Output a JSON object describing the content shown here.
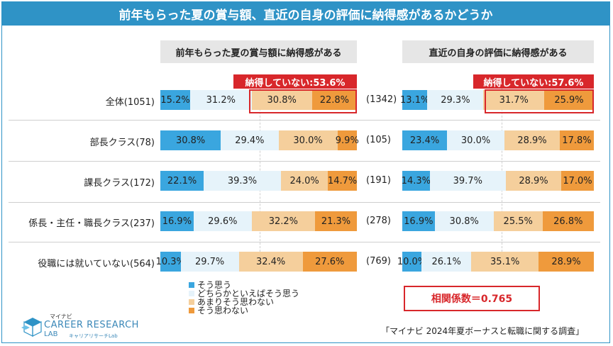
{
  "title": "前年もらった夏の賞与額、直近の自身の評価に納得感があるかどうか",
  "colors": {
    "accent": "#2f93c6",
    "highlight": "#d8272b",
    "c1": "#3aa6df",
    "c2": "#e6f3fa",
    "c3": "#f5cf9c",
    "c4": "#ef9a3c"
  },
  "panels": [
    {
      "header": "前年もらった夏の賞与額に納得感がある",
      "highlight_label": "納得していない:53.6%"
    },
    {
      "header": "直近の自身の評価に納得感がある",
      "highlight_label": "納得していない:57.6%"
    }
  ],
  "legend": [
    "そう思う",
    "どちらかといえばそう思う",
    "あまりそう思わない",
    "そう思わない"
  ],
  "correlation": "相関係数＝0.765",
  "source": "「マイナビ 2024年夏ボーナスと転職に関する調査」",
  "logo": {
    "small": "マイナビ",
    "main": "CAREER RESEARCH",
    "sub": "LAB",
    "sub2": "キャリアリサーチLab"
  },
  "chart_data": [
    {
      "type": "bar",
      "stacked": true,
      "title": "前年もらった夏の賞与額に納得感がある",
      "categories": [
        "全体(1051)",
        "部長クラス(78)",
        "課長クラス(172)",
        "係長・主任・職長クラス(237)",
        "役職には就いていない(564)"
      ],
      "series": [
        {
          "name": "そう思う",
          "values": [
            15.2,
            30.8,
            22.1,
            16.9,
            10.3
          ],
          "labels": [
            "15.2%",
            "30.8%",
            "22.1%",
            "16.9%",
            "10.3%"
          ]
        },
        {
          "name": "どちらかといえばそう思う",
          "values": [
            31.2,
            29.4,
            39.3,
            29.6,
            29.7
          ],
          "labels": [
            "31.2%",
            "29.4%",
            "39.3%",
            "29.6%",
            "29.7%"
          ]
        },
        {
          "name": "あまりそう思わない",
          "values": [
            30.8,
            30.0,
            24.0,
            32.2,
            32.4
          ],
          "labels": [
            "30.8%",
            "30.0%",
            "24.0%",
            "32.2%",
            "32.4%"
          ]
        },
        {
          "name": "そう思わない",
          "values": [
            22.8,
            9.9,
            14.7,
            21.3,
            27.6
          ],
          "labels": [
            "22.8%",
            "9.9%",
            "14.7%",
            "21.3%",
            "27.6%"
          ]
        }
      ]
    },
    {
      "type": "bar",
      "stacked": true,
      "title": "直近の自身の評価に納得感がある",
      "categories": [
        "(1342)",
        "(105)",
        "(191)",
        "(278)",
        "(769)"
      ],
      "series": [
        {
          "name": "そう思う",
          "values": [
            13.1,
            23.4,
            14.3,
            16.9,
            10.0
          ],
          "labels": [
            "13.1%",
            "23.4%",
            "14.3%",
            "16.9%",
            "10.0%"
          ]
        },
        {
          "name": "どちらかといえばそう思う",
          "values": [
            29.3,
            30.0,
            39.7,
            30.8,
            26.1
          ],
          "labels": [
            "29.3%",
            "30.0%",
            "39.7%",
            "30.8%",
            "26.1%"
          ]
        },
        {
          "name": "あまりそう思わない",
          "values": [
            31.7,
            28.9,
            28.9,
            25.5,
            35.1
          ],
          "labels": [
            "31.7%",
            "28.9%",
            "28.9%",
            "25.5%",
            "35.1%"
          ]
        },
        {
          "name": "そう思わない",
          "values": [
            25.9,
            17.8,
            17.0,
            26.8,
            28.9
          ],
          "labels": [
            "25.9%",
            "17.8%",
            "17.0%",
            "26.8%",
            "28.9%"
          ]
        }
      ]
    }
  ]
}
